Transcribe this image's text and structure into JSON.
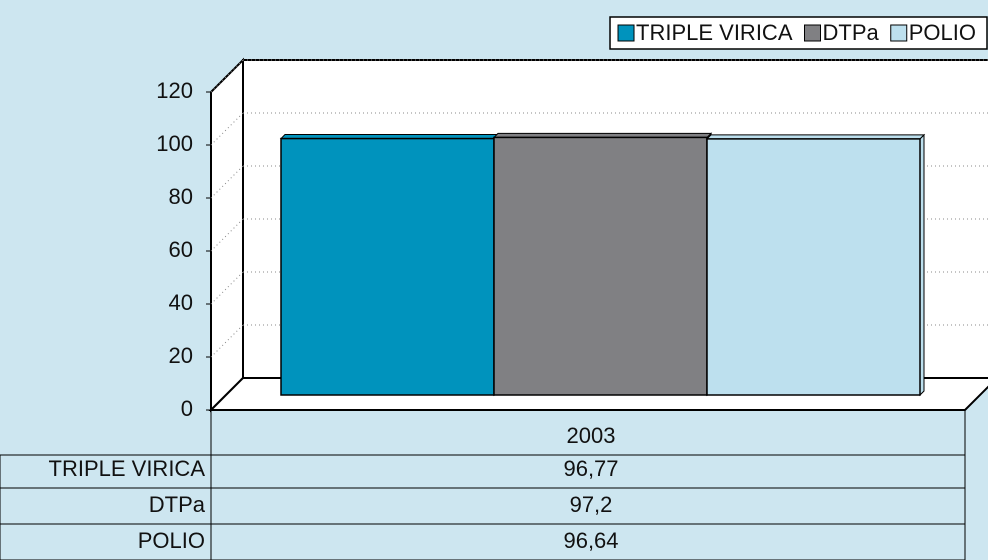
{
  "chart_data": {
    "type": "bar3d",
    "categories": [
      "2003"
    ],
    "series": [
      {
        "name": "TRIPLE VIRICA",
        "color": "#0093bd",
        "values": [
          96.77
        ],
        "value_labels": [
          "96,77"
        ]
      },
      {
        "name": "DTPa",
        "color": "#808083",
        "values": [
          97.2
        ],
        "value_labels": [
          "97,2"
        ]
      },
      {
        "name": "POLIO",
        "color": "#bde0ee",
        "values": [
          96.64
        ],
        "value_labels": [
          "96,64"
        ]
      }
    ],
    "ylim": [
      0,
      120
    ],
    "yticks": [
      0,
      20,
      40,
      60,
      80,
      100,
      120
    ],
    "grid": true,
    "legend_position": "top-right",
    "data_table": true
  }
}
